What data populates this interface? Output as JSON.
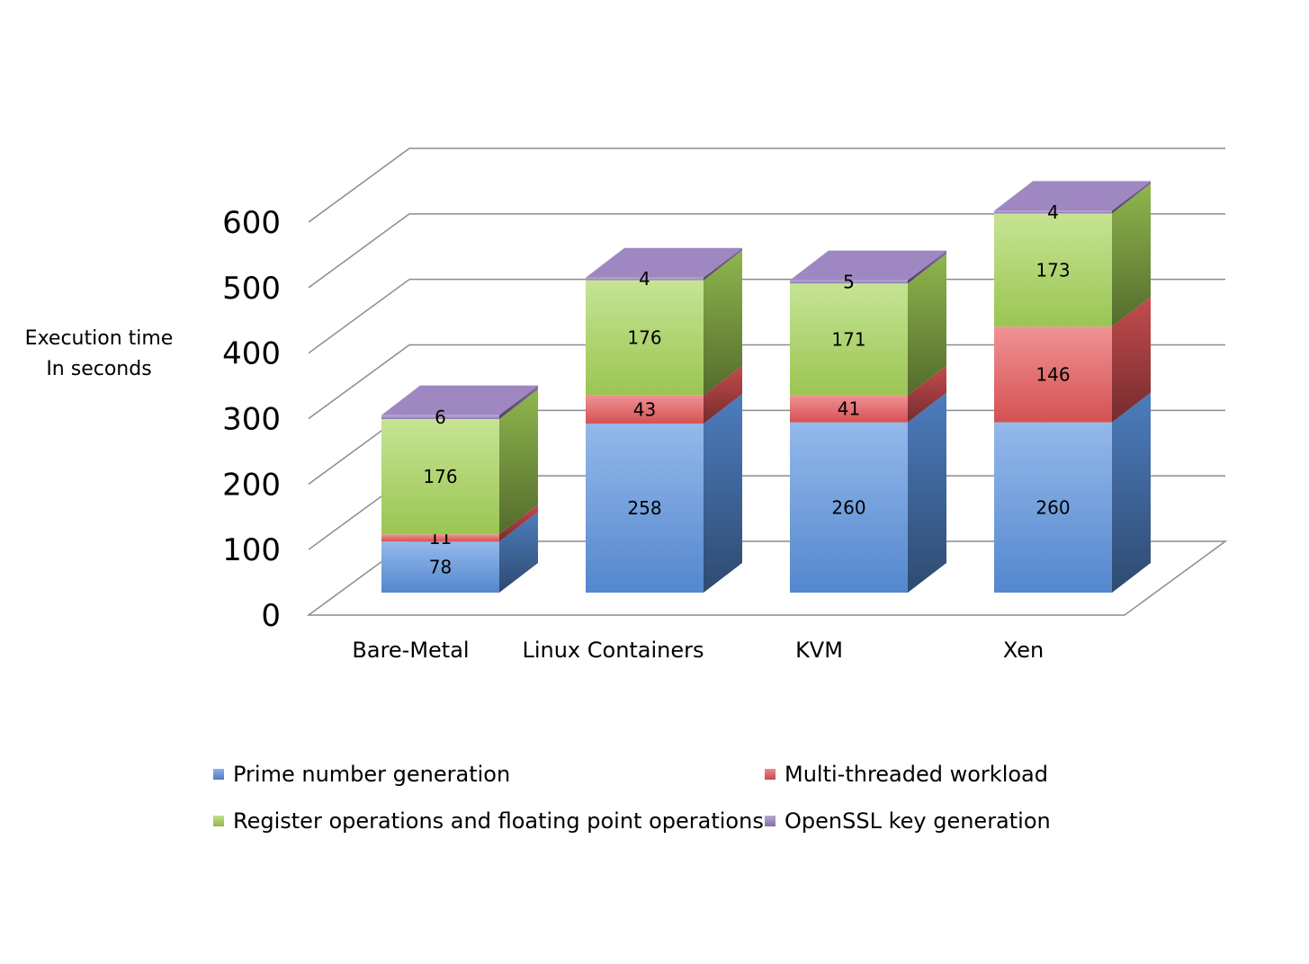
{
  "chart_data": {
    "type": "bar",
    "stacked": true,
    "three_d": true,
    "ylabel_lines": [
      "Execution time",
      "In seconds"
    ],
    "categories": [
      "Bare-Metal",
      "Linux Containers",
      "KVM",
      "Xen"
    ],
    "series": [
      {
        "name": "Prime number generation",
        "values": [
          78,
          258,
          260,
          260
        ],
        "color": "#5b93e0"
      },
      {
        "name": "Multi-threaded workload",
        "values": [
          11,
          43,
          41,
          146
        ],
        "color": "#e8585a"
      },
      {
        "name": "Register operations and floating point operations",
        "values": [
          176,
          176,
          171,
          173
        ],
        "color": "#a8d65a"
      },
      {
        "name": "OpenSSL key generation",
        "values": [
          6,
          4,
          5,
          4
        ],
        "color": "#9a82be"
      }
    ],
    "ylim": [
      0,
      600
    ],
    "yticks": [
      0,
      100,
      200,
      300,
      400,
      500,
      600
    ],
    "grid": true,
    "legend_position": "bottom"
  }
}
